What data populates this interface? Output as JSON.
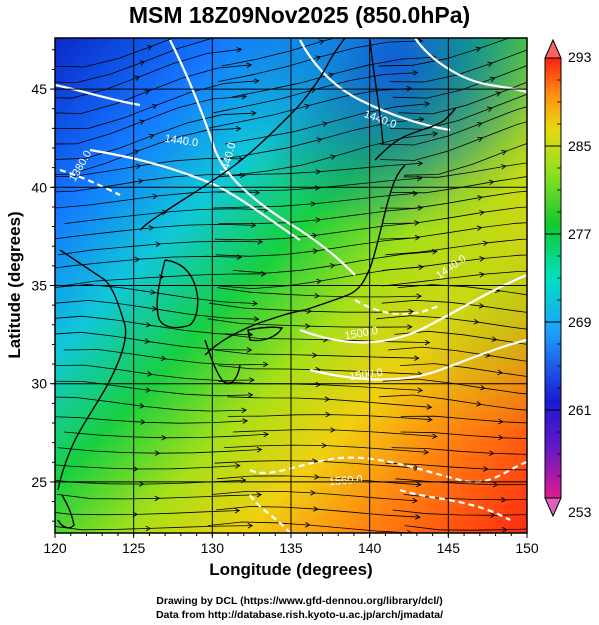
{
  "title": "MSM 18Z09Nov2025 (850.0hPa)",
  "credits": {
    "line1": "Drawing by DCL (https://www.gfd-dennou.org/library/dcl/)",
    "line2": "Data from http://database.rish.kyoto-u.ac.jp/arch/jmadata/"
  },
  "map": {
    "xlabel": "Longitude (degrees)",
    "ylabel": "Latitude  (degrees)",
    "xlim": [
      120,
      150
    ],
    "ylim": [
      22.4,
      47.6
    ],
    "xticks": [
      "120",
      "125",
      "130",
      "135",
      "140",
      "145",
      "150"
    ],
    "yticks": [
      "25",
      "30",
      "35",
      "40",
      "45"
    ],
    "contour_labels": [
      {
        "text": "1440.0",
        "lon": 128.0,
        "lat": 42.2,
        "rot": 8
      },
      {
        "text": "1440.0",
        "lon": 131.2,
        "lat": 41.4,
        "rot": -75
      },
      {
        "text": "1380.0",
        "lon": 121.8,
        "lat": 41.0,
        "rot": -60
      },
      {
        "text": "1440.0",
        "lon": 140.6,
        "lat": 43.3,
        "rot": 20
      },
      {
        "text": "1440.0",
        "lon": 145.3,
        "lat": 35.8,
        "rot": -35
      },
      {
        "text": "1500.0",
        "lon": 139.5,
        "lat": 32.4,
        "rot": -10
      },
      {
        "text": "1500.0",
        "lon": 139.8,
        "lat": 30.3,
        "rot": -8
      },
      {
        "text": "1560.0",
        "lon": 138.5,
        "lat": 24.9,
        "rot": -5
      }
    ]
  },
  "colorbar": {
    "vmin": 253,
    "vmax": 293,
    "labels": [
      "293",
      "285",
      "277",
      "269",
      "261",
      "253"
    ],
    "colors": [
      "#e01a8e",
      "#1a1ad0",
      "#1fa0ff",
      "#00e0c0",
      "#10c830",
      "#90e020",
      "#e8d810",
      "#ff8c10",
      "#ff2010",
      "#ff6060"
    ]
  }
}
